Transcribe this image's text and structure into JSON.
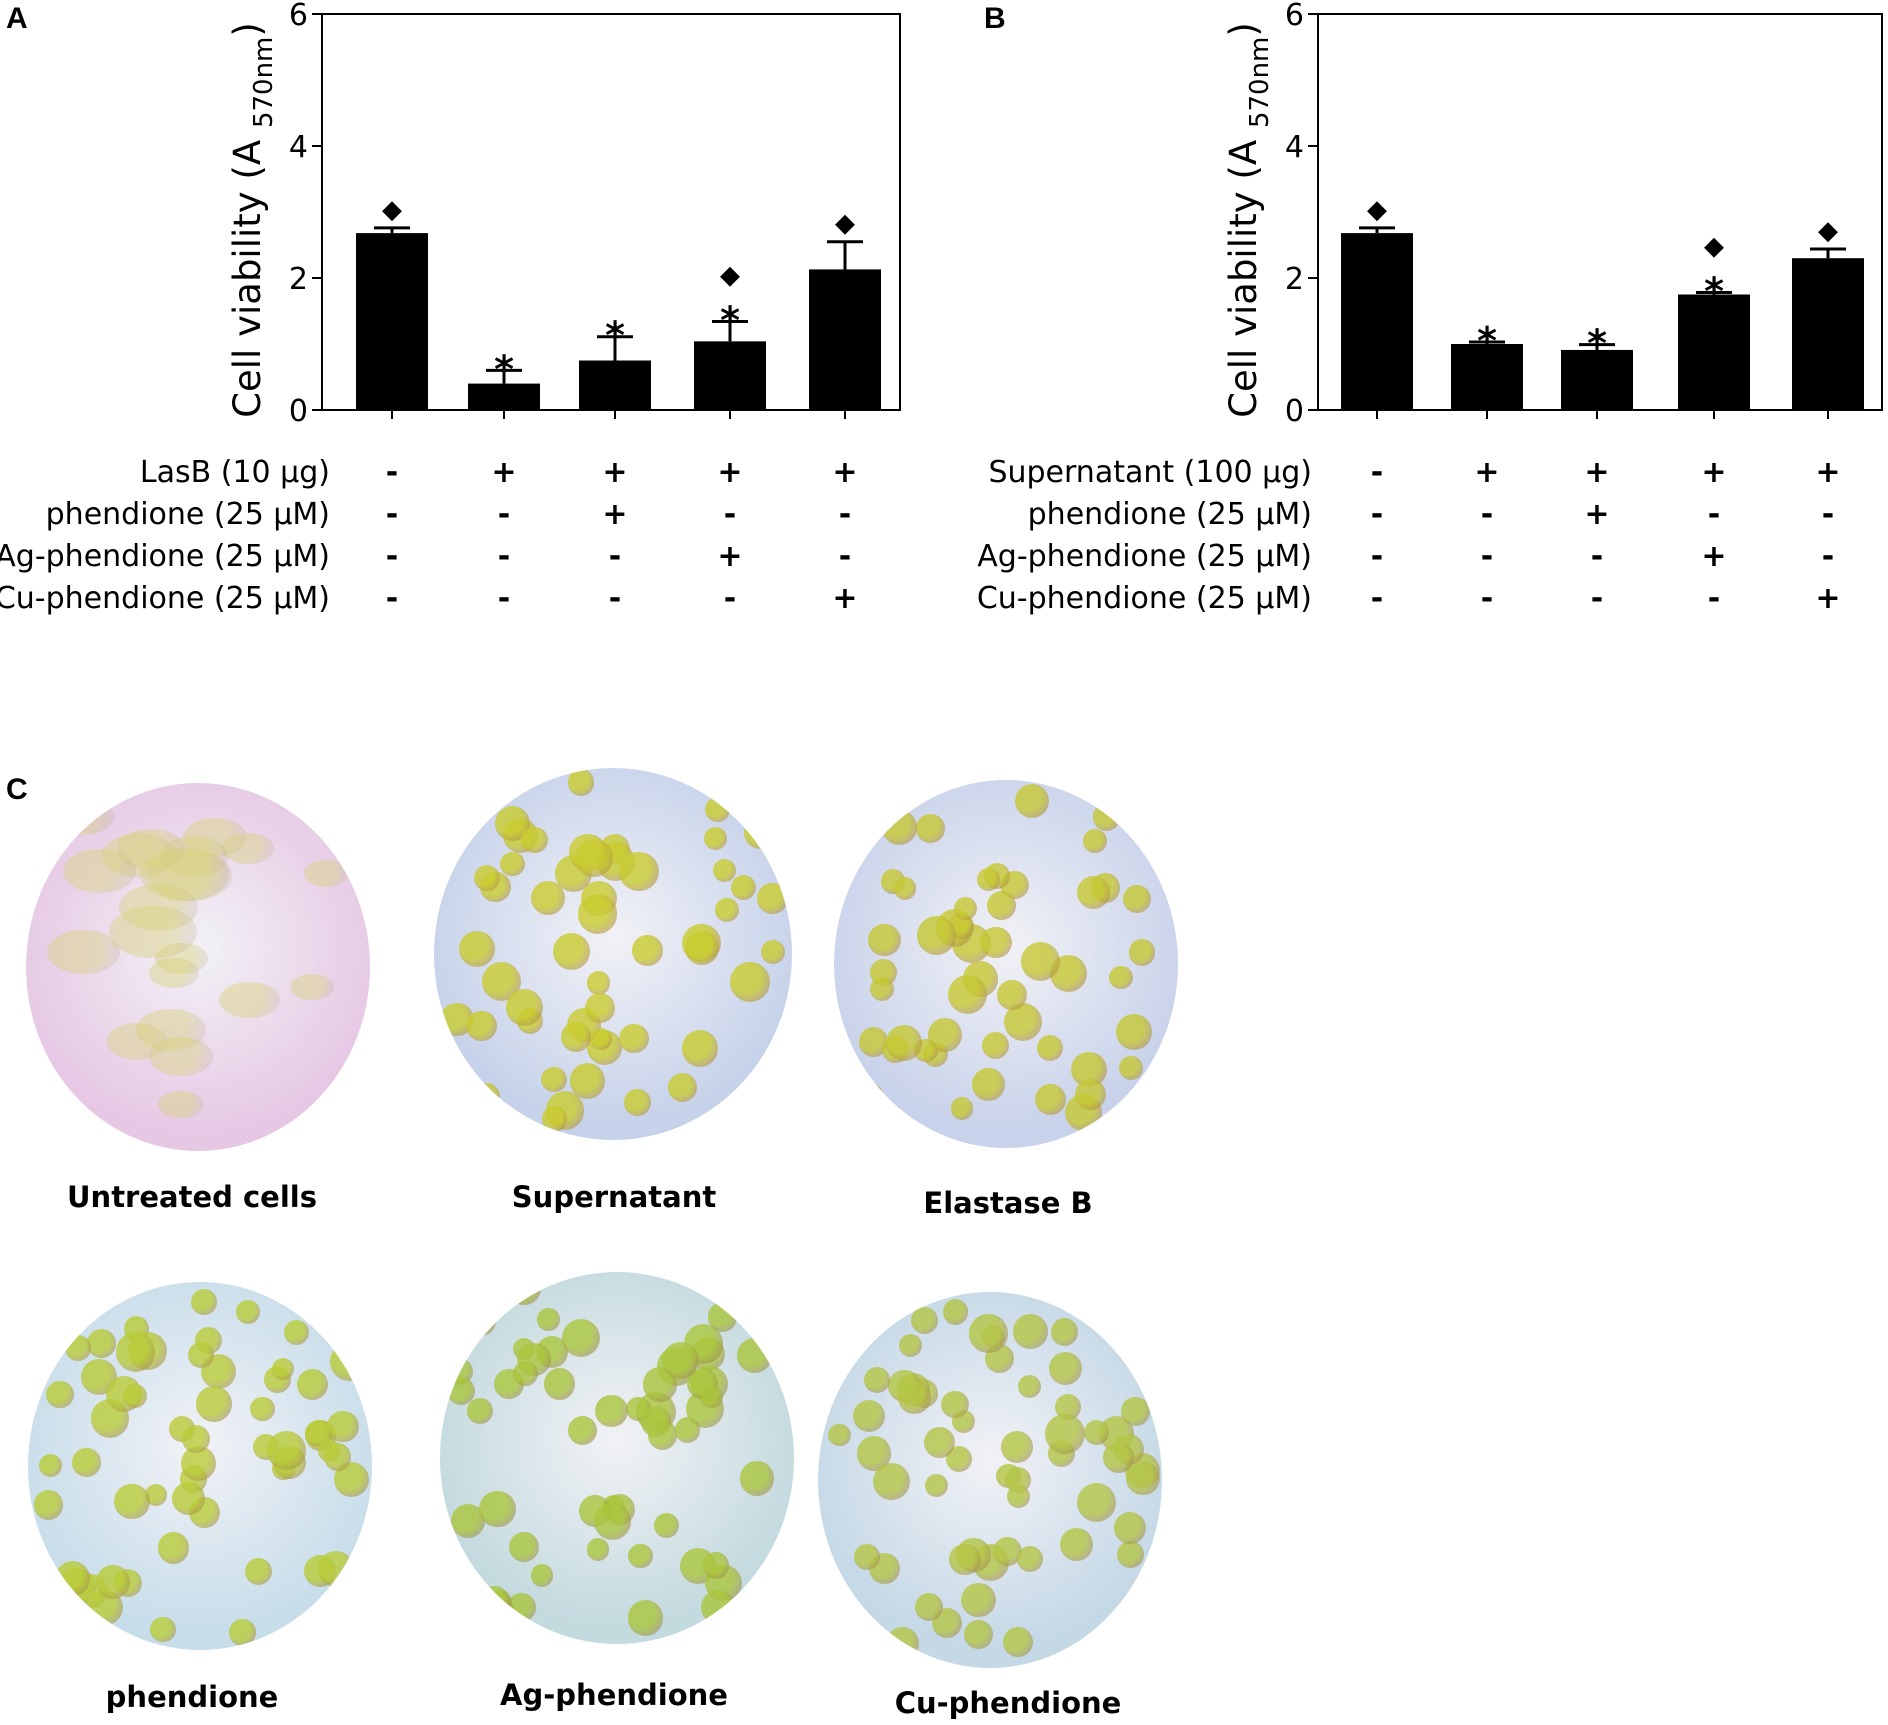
{
  "panels": {
    "a": "A",
    "b": "B",
    "c": "C"
  },
  "chart_data": [
    {
      "type": "bar",
      "ylabel_main": "Cell viability (A",
      "ylabel_sub": "570nm",
      "ylabel_close": ")",
      "ylim": [
        0,
        6
      ],
      "yticks": [
        "0",
        "2",
        "4",
        "6"
      ],
      "values": [
        2.68,
        0.4,
        0.75,
        1.04,
        2.13
      ],
      "errors": [
        0.08,
        0.2,
        0.36,
        0.3,
        0.42
      ],
      "asterisk": [
        "",
        "*",
        "*",
        "*",
        ""
      ],
      "diamond": [
        "◆",
        "",
        "",
        "◆",
        "◆"
      ],
      "rows": [
        {
          "label": "LasB (10 µg)",
          "signs": [
            "-",
            "+",
            "+",
            "+",
            "+"
          ]
        },
        {
          "label": "phendione (25 µM)",
          "signs": [
            "-",
            "-",
            "+",
            "-",
            "-"
          ]
        },
        {
          "label": "Ag-phendione (25 µM)",
          "signs": [
            "-",
            "-",
            "-",
            "+",
            "-"
          ]
        },
        {
          "label": "Cu-phendione (25 µM)",
          "signs": [
            "-",
            "-",
            "-",
            "-",
            "+"
          ]
        }
      ]
    },
    {
      "type": "bar",
      "ylabel_main": "Cell viability (A",
      "ylabel_sub": "570nm",
      "ylabel_close": ")",
      "ylim": [
        0,
        6
      ],
      "yticks": [
        "0",
        "2",
        "4",
        "6"
      ],
      "values": [
        2.68,
        1.0,
        0.91,
        1.75,
        2.3
      ],
      "errors": [
        0.08,
        0.03,
        0.08,
        0.03,
        0.14
      ],
      "asterisk": [
        "",
        "*",
        "*",
        "*",
        ""
      ],
      "diamond": [
        "◆",
        "",
        "",
        "◆",
        "◆"
      ],
      "rows": [
        {
          "label": "Supernatant (100 µg)",
          "signs": [
            "-",
            "+",
            "+",
            "+",
            "+"
          ]
        },
        {
          "label": "phendione (25 µM)",
          "signs": [
            "-",
            "-",
            "+",
            "-",
            "-"
          ]
        },
        {
          "label": "Ag-phendione (25 µM)",
          "signs": [
            "-",
            "-",
            "-",
            "+",
            "-"
          ]
        },
        {
          "label": "Cu-phendione (25 µM)",
          "signs": [
            "-",
            "-",
            "-",
            "-",
            "+"
          ]
        }
      ]
    }
  ],
  "images": [
    {
      "caption": "Untreated cells",
      "bg": "#e6c8e4",
      "cell": "#d8d27c"
    },
    {
      "caption": "Supernatant",
      "bg": "#c6d2ea",
      "cell": "#c9cc2e"
    },
    {
      "caption": "Elastase B",
      "bg": "#c8d2ea",
      "cell": "#c6c832"
    },
    {
      "caption": "phendione",
      "bg": "#c7ddea",
      "cell": "#b9cc38"
    },
    {
      "caption": "Ag-phendione",
      "bg": "#c3dade",
      "cell": "#aac63c"
    },
    {
      "caption": "Cu-phendione",
      "bg": "#c4d8e6",
      "cell": "#b4c644"
    }
  ]
}
